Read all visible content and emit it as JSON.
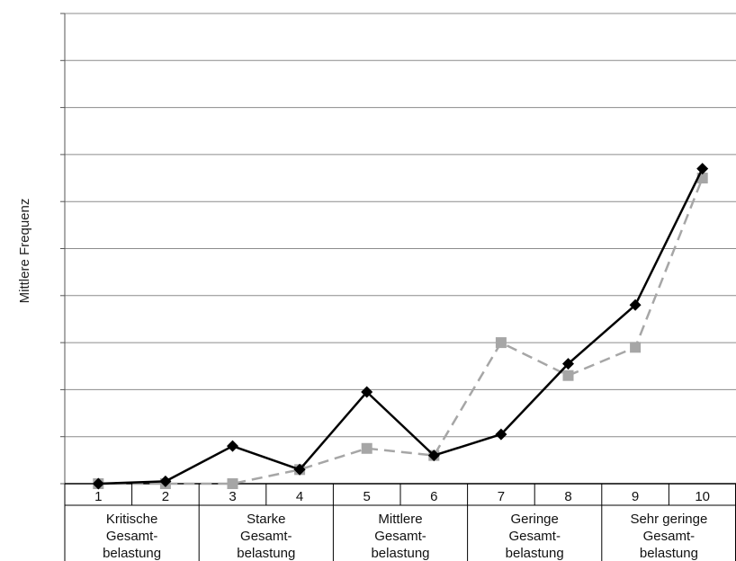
{
  "chart_data": {
    "type": "line",
    "title": "",
    "xlabel": "",
    "ylabel": "Mittlere Frequenz",
    "categories": [
      "1",
      "2",
      "3",
      "4",
      "5",
      "6",
      "7",
      "8",
      "9",
      "10"
    ],
    "groups": [
      {
        "label_lines": [
          "Kritische",
          "Gesamt-",
          "belastung"
        ],
        "categories": [
          "1",
          "2"
        ]
      },
      {
        "label_lines": [
          "Starke",
          "Gesamt-",
          "belastung"
        ],
        "categories": [
          "3",
          "4"
        ]
      },
      {
        "label_lines": [
          "Mittlere",
          "Gesamt-",
          "belastung"
        ],
        "categories": [
          "5",
          "6"
        ]
      },
      {
        "label_lines": [
          "Geringe",
          "Gesamt-",
          "belastung"
        ],
        "categories": [
          "7",
          "8"
        ]
      },
      {
        "label_lines": [
          "Sehr geringe",
          "Gesamt-",
          "belastung"
        ],
        "categories": [
          "9",
          "10"
        ]
      }
    ],
    "ylim": [
      0,
      10
    ],
    "grid": true,
    "y_tick_labels_shown": false,
    "series": [
      {
        "values": [
          0.0,
          0.05,
          0.8,
          0.3,
          1.95,
          0.6,
          1.05,
          2.55,
          3.8,
          6.7
        ],
        "color": "#000000",
        "style": "solid",
        "marker": "diamond"
      },
      {
        "values": [
          0.0,
          0.0,
          0.0,
          0.3,
          0.75,
          0.6,
          3.0,
          2.3,
          2.9,
          6.5
        ],
        "color": "#a6a6a6",
        "style": "dashed",
        "marker": "square"
      }
    ]
  }
}
